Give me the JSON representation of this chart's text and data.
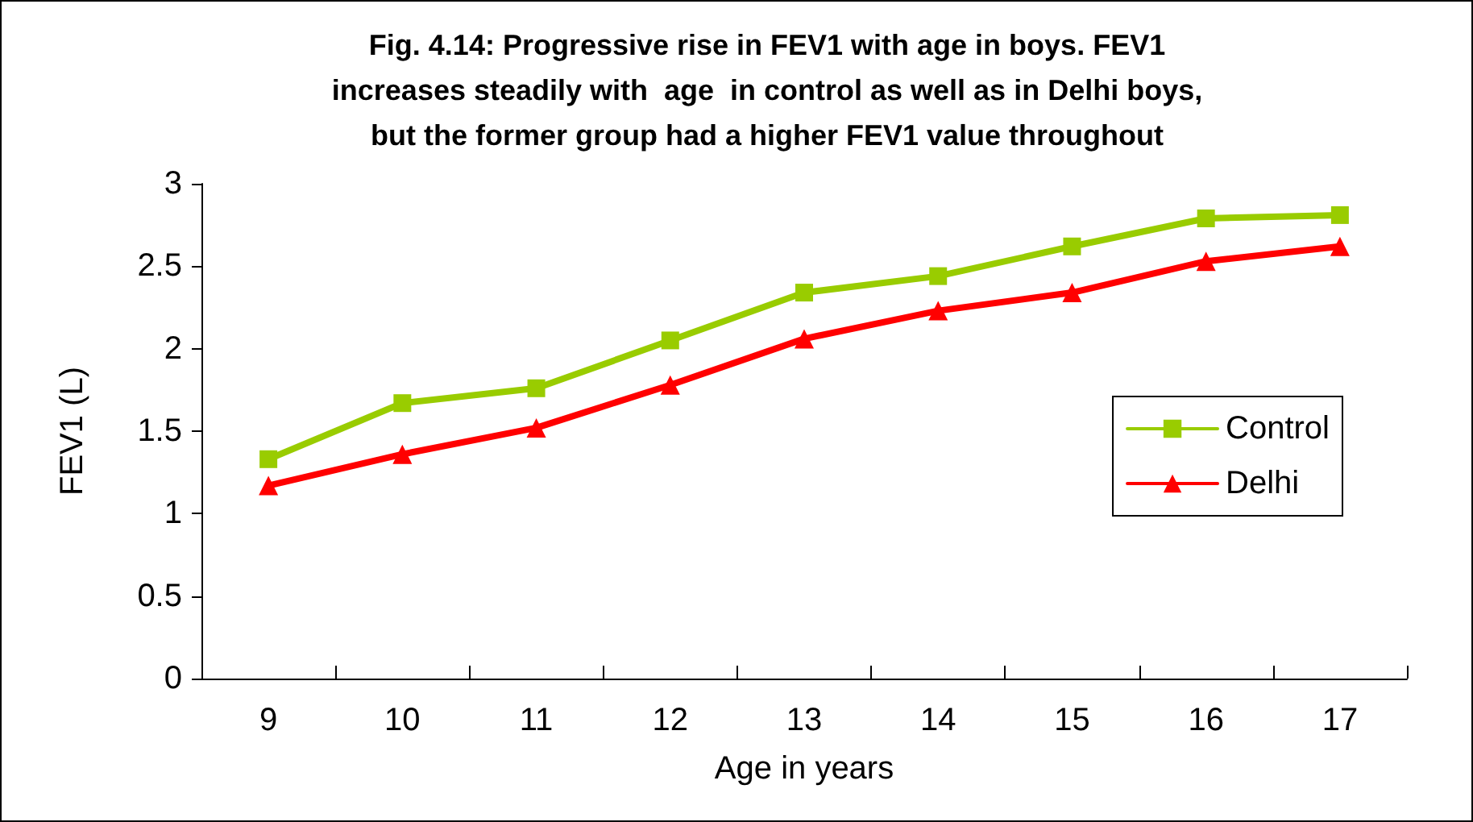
{
  "chart_data": {
    "type": "line",
    "title": "Fig. 4.14: Progressive rise in FEV1 with age in boys. FEV1\nincreases steadily with  age  in control as well as in Delhi boys,\nbut the former group had a higher FEV1 value throughout",
    "xlabel": "Age in years",
    "ylabel": "FEV1 (L)",
    "categories": [
      "9",
      "10",
      "11",
      "12",
      "13",
      "14",
      "15",
      "16",
      "17"
    ],
    "series": [
      {
        "name": "Control",
        "color": "#99cc00",
        "marker": "square",
        "values": [
          1.33,
          1.67,
          1.76,
          2.05,
          2.34,
          2.44,
          2.62,
          2.79,
          2.81
        ]
      },
      {
        "name": "Delhi",
        "color": "#ff0000",
        "marker": "triangle",
        "values": [
          1.17,
          1.36,
          1.52,
          1.78,
          2.06,
          2.23,
          2.34,
          2.53,
          2.62
        ]
      }
    ],
    "ylim": [
      0,
      3
    ],
    "yticks": [
      0,
      0.5,
      1,
      1.5,
      2,
      2.5,
      3
    ],
    "grid": false,
    "legend": "right",
    "line_style": "solid"
  }
}
